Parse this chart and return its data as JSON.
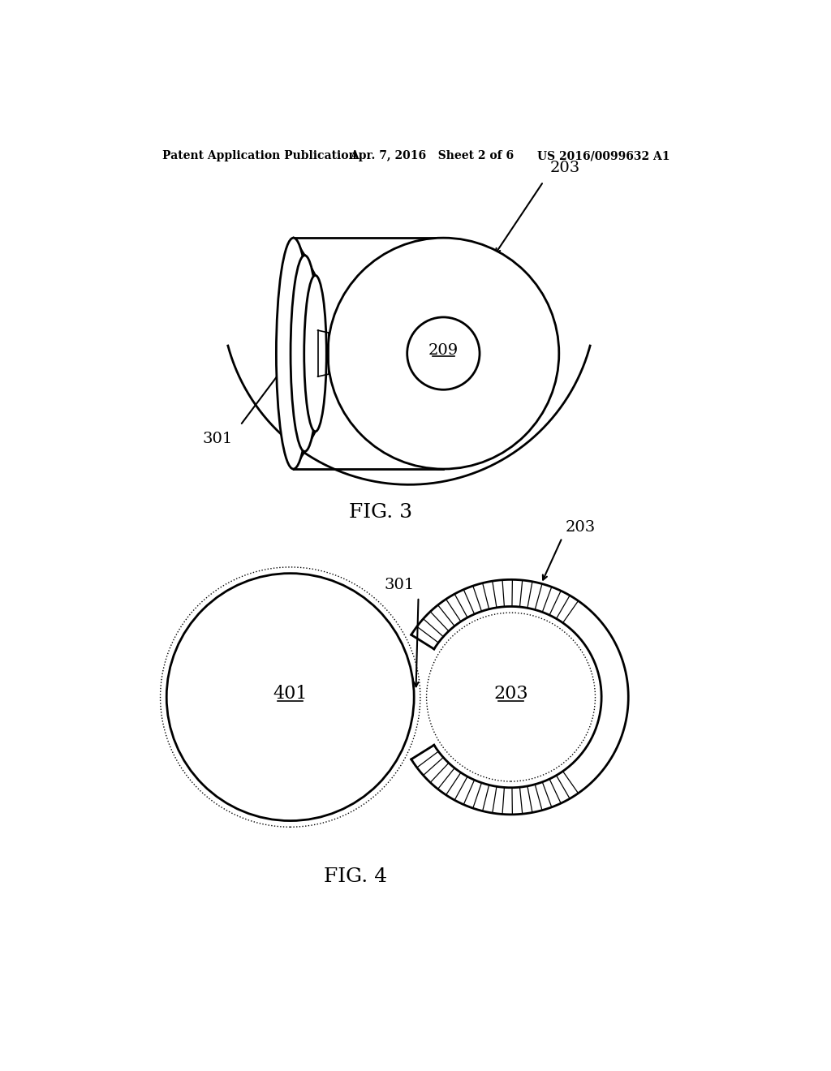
{
  "bg_color": "#ffffff",
  "line_color": "#000000",
  "header_left": "Patent Application Publication",
  "header_mid": "Apr. 7, 2016   Sheet 2 of 6",
  "header_right": "US 2016/0099632 A1",
  "fig3_label": "FIG. 3",
  "fig4_label": "FIG. 4",
  "label_203_fig3": "203",
  "label_301_fig3": "301",
  "label_209_fig3": "209",
  "label_401_fig4": "401",
  "label_203_fig4": "203",
  "label_301_fig4": "301",
  "label_203_arrow_fig4": "203"
}
